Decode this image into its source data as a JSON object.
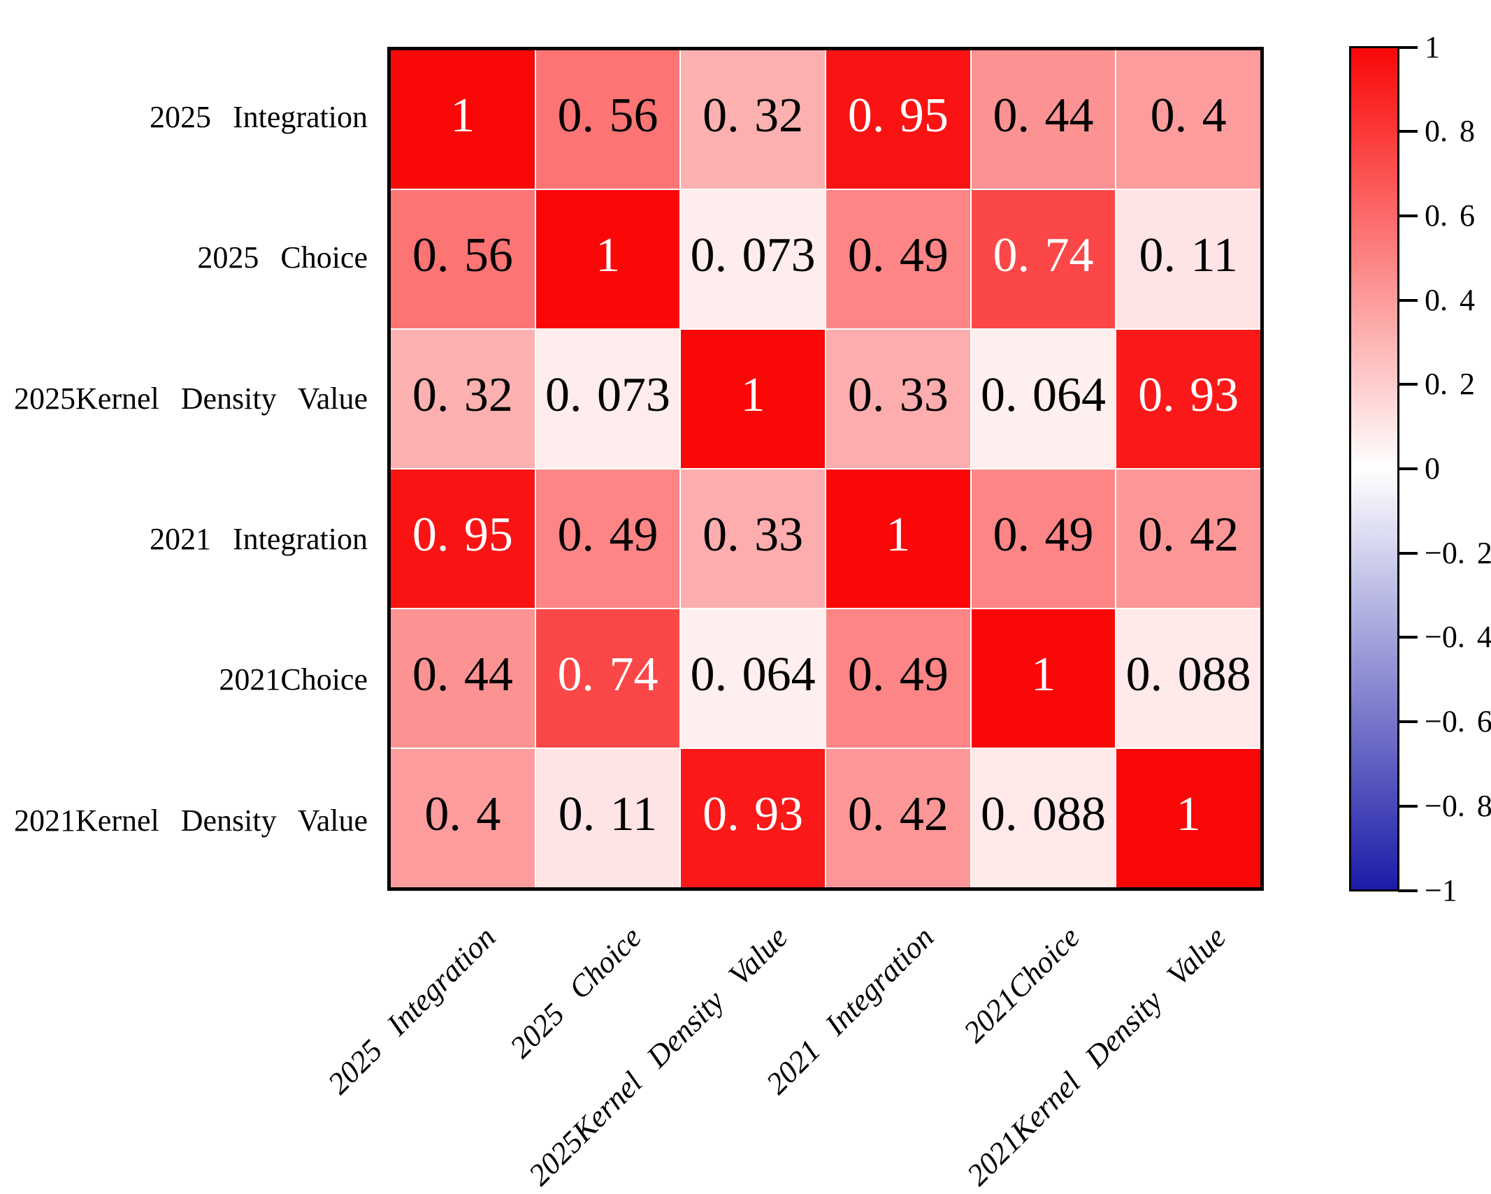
{
  "chart_data": {
    "type": "heatmap",
    "title": "",
    "categories": [
      "2025 Integration",
      "2025 Choice",
      "2025Kernel Density Value",
      "2021 Integration",
      "2021Choice",
      "2021Kernel Density Value"
    ],
    "matrix": [
      [
        1,
        0.56,
        0.32,
        0.95,
        0.44,
        0.4
      ],
      [
        0.56,
        1,
        0.073,
        0.49,
        0.74,
        0.11
      ],
      [
        0.32,
        0.073,
        1,
        0.33,
        0.064,
        0.93
      ],
      [
        0.95,
        0.49,
        0.33,
        1,
        0.49,
        0.42
      ],
      [
        0.44,
        0.74,
        0.064,
        0.49,
        1,
        0.088
      ],
      [
        0.4,
        0.11,
        0.93,
        0.42,
        0.088,
        1
      ]
    ],
    "cell_labels": [
      [
        "1",
        "0. 56",
        "0. 32",
        "0. 95",
        "0. 44",
        "0. 4"
      ],
      [
        "0. 56",
        "1",
        "0. 073",
        "0. 49",
        "0. 74",
        "0. 11"
      ],
      [
        "0. 32",
        "0. 073",
        "1",
        "0. 33",
        "0. 064",
        "0. 93"
      ],
      [
        "0. 95",
        "0. 49",
        "0. 33",
        "1",
        "0. 49",
        "0. 42"
      ],
      [
        "0. 44",
        "0. 74",
        "0. 064",
        "0. 49",
        "1",
        "0. 088"
      ],
      [
        "0. 4",
        "0. 11",
        "0. 93",
        "0. 42",
        "0. 088",
        "1"
      ]
    ],
    "vmin": -1,
    "vmax": 1,
    "colorbar_tick_values": [
      1,
      0.8,
      0.6,
      0.4,
      0.2,
      0,
      -0.2,
      -0.4,
      -0.6,
      -0.8,
      -1
    ],
    "colorbar_tick_labels": [
      "1",
      "0. 8",
      "0. 6",
      "0. 4",
      "0. 2",
      "0",
      "−0. 2",
      "−0. 4",
      "−0. 6",
      "−0. 8",
      "−1"
    ],
    "colormap": {
      "max_color": "#fa0707",
      "mid_color": "#ffffff",
      "min_color": "#1b1ba8"
    },
    "text_colors": {
      "light": "#ffffff",
      "dark": "#000000"
    },
    "white_text_threshold": 0.7,
    "legend_position": "right",
    "grid": false
  }
}
